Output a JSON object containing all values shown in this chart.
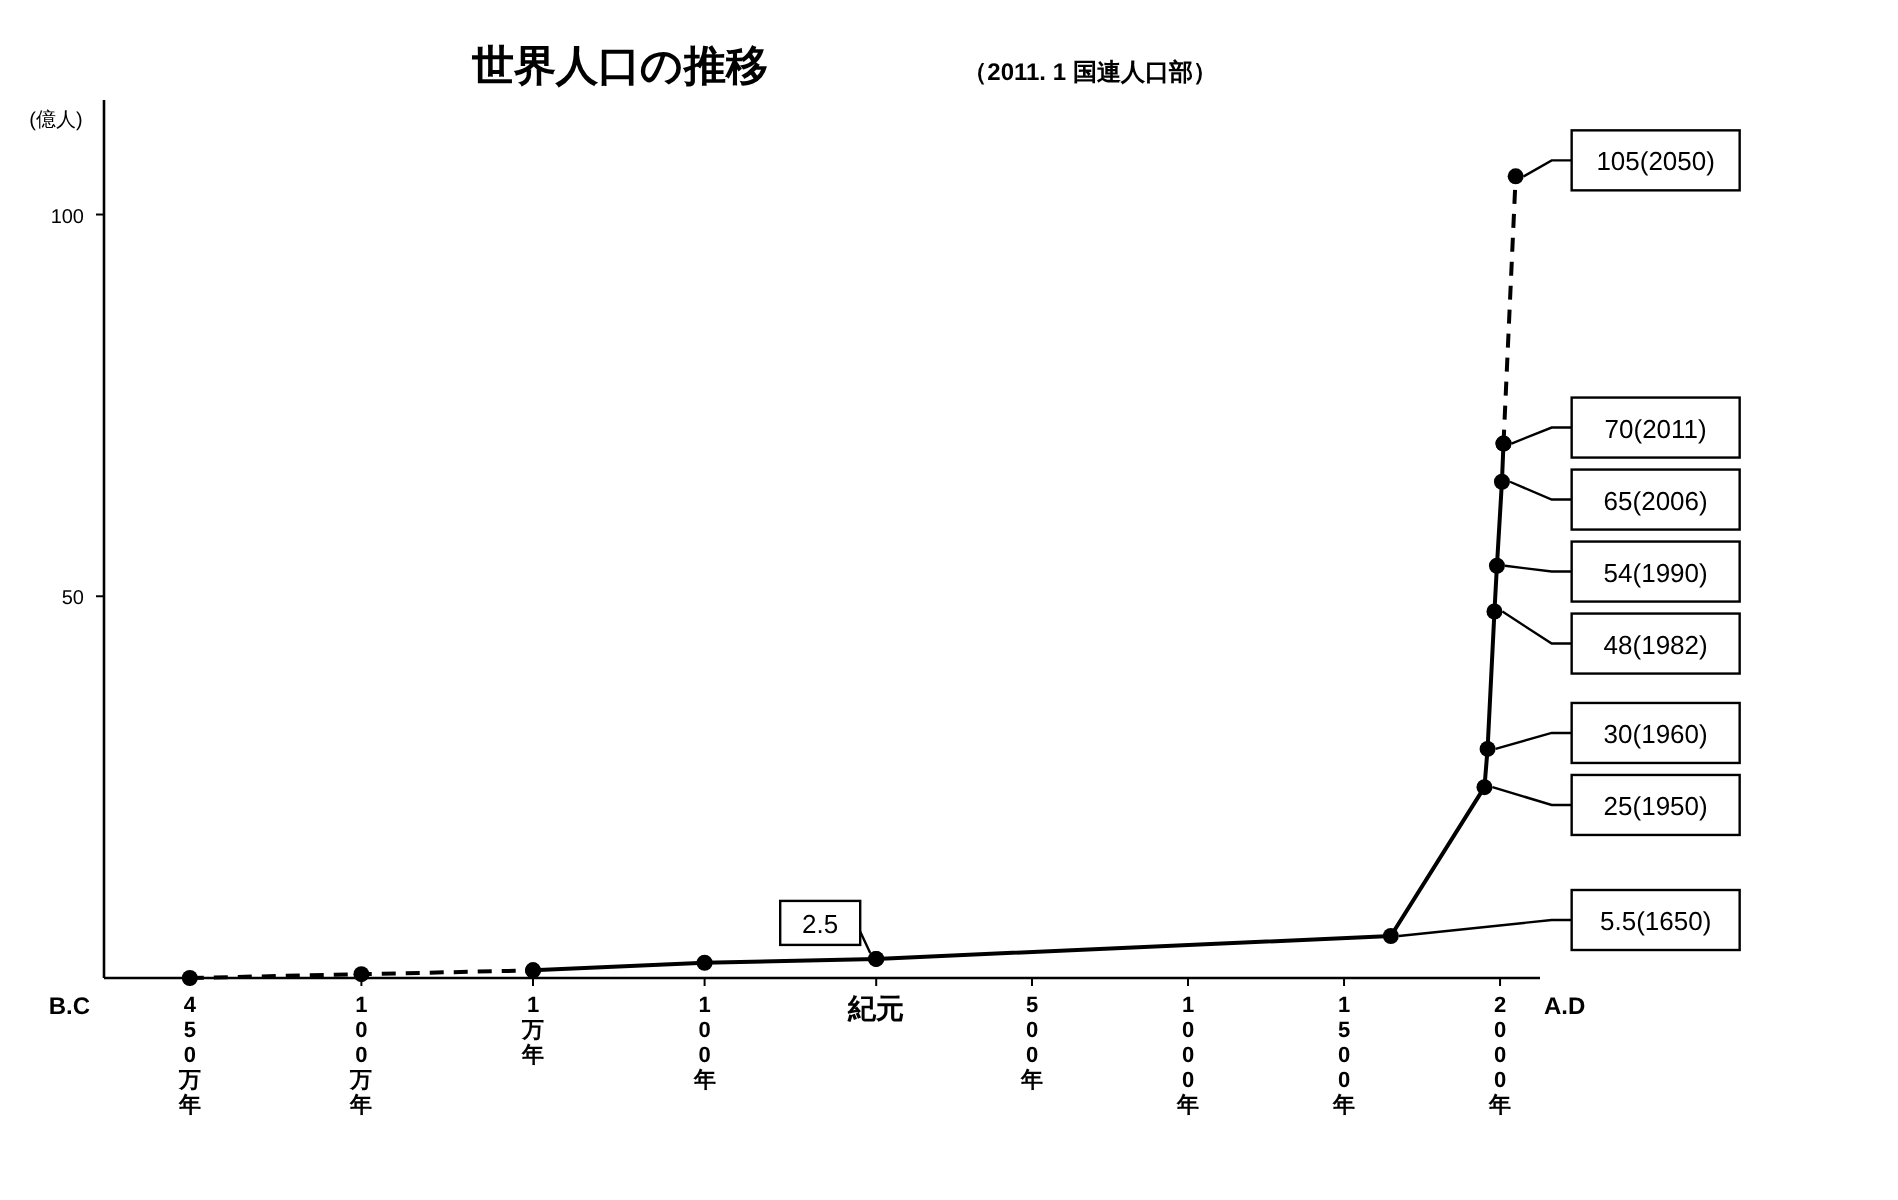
{
  "chart_data": [
    {
      "type": "line",
      "title": "世界人口の推移",
      "ylabel": "(億人)",
      "annotations": [
        "B.C"
      ],
      "categories": [
        "450万年",
        "100万年",
        "1万年",
        "100年",
        "紀元"
      ],
      "ylim": [
        0,
        115
      ],
      "yticks": [
        50,
        100
      ],
      "marker": "circle",
      "series": [
        {
          "color": "#000000",
          "line_style": "dashed",
          "values": [
            0,
            0.5,
            1,
            null,
            null
          ]
        },
        {
          "color": "#000000",
          "line_style": "solid",
          "values": [
            null,
            null,
            1,
            2,
            2.5
          ],
          "value_labels": [
            null,
            null,
            null,
            null,
            "2.5"
          ]
        }
      ]
    },
    {
      "type": "line",
      "subtitle": "（2011. 1  国連人口部）",
      "annotations": [
        "A.D"
      ],
      "tick_labels": "x",
      "xlim": [
        0,
        2128
      ],
      "xticks": [
        {
          "value": 500,
          "label": "500年"
        },
        {
          "value": 1000,
          "label": "1000年"
        },
        {
          "value": 1500,
          "label": "1500年"
        },
        {
          "value": 2000,
          "label": "2000年"
        }
      ],
      "marker": "circle",
      "series": [
        {
          "color": "#000000",
          "line_style": "solid",
          "x": [
            0,
            1650,
            1950,
            1960,
            1982,
            1990,
            2006,
            2011
          ],
          "values": [
            2.5,
            5.5,
            25,
            30,
            48,
            54,
            65,
            70
          ],
          "value_labels": [
            null,
            "5.5(1650)",
            "25(1950)",
            "30(1960)",
            "48(1982)",
            "54(1990)",
            "65(2006)",
            "70(2011)"
          ]
        },
        {
          "color": "#000000",
          "line_style": "dashed",
          "x": [
            2011,
            2050
          ],
          "values": [
            70,
            105
          ],
          "value_labels": [
            null,
            "105(2050)"
          ]
        }
      ]
    }
  ]
}
